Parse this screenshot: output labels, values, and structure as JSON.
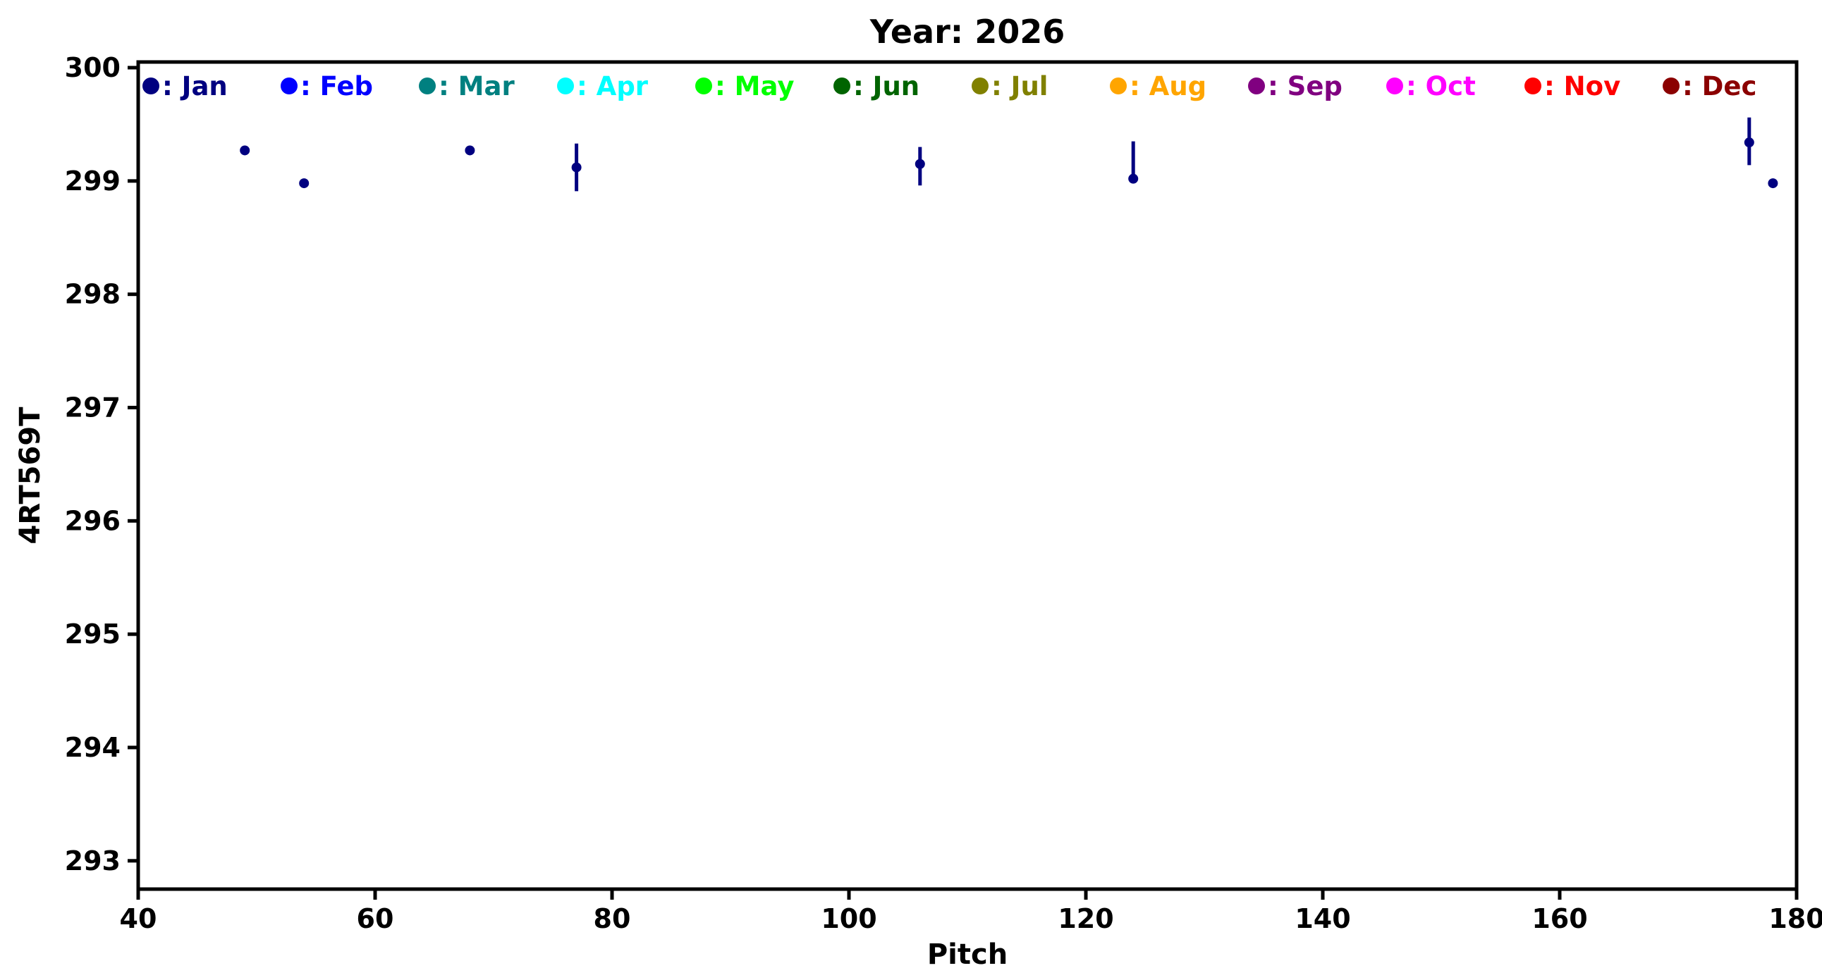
{
  "chart_data": {
    "type": "scatter",
    "title": "Year: 2026",
    "xlabel": "Pitch",
    "ylabel": "4RT569T",
    "xlim": [
      40,
      180
    ],
    "ylim": [
      292.75,
      300.05
    ],
    "xticks": [
      40,
      60,
      80,
      100,
      120,
      140,
      160,
      180
    ],
    "yticks": [
      293,
      294,
      295,
      296,
      297,
      298,
      299,
      300
    ],
    "grid": false,
    "legend_position": "top-inside-row",
    "legend": [
      {
        "label": "Jan",
        "color": "#000080"
      },
      {
        "label": "Feb",
        "color": "#0000ff"
      },
      {
        "label": "Mar",
        "color": "#008080"
      },
      {
        "label": "Apr",
        "color": "#00ffff"
      },
      {
        "label": "May",
        "color": "#00ff00"
      },
      {
        "label": "Jun",
        "color": "#006400"
      },
      {
        "label": "Jul",
        "color": "#808000"
      },
      {
        "label": "Aug",
        "color": "#ffa500"
      },
      {
        "label": "Sep",
        "color": "#800080"
      },
      {
        "label": "Oct",
        "color": "#ff00ff"
      },
      {
        "label": "Nov",
        "color": "#ff0000"
      },
      {
        "label": "Dec",
        "color": "#8b0000"
      }
    ],
    "series": [
      {
        "name": "Jan",
        "color": "#000080",
        "marker": "circle",
        "points": [
          {
            "x": 49,
            "y": 299.27,
            "yerr_plus": 0.0,
            "yerr_minus": 0.0
          },
          {
            "x": 54,
            "y": 298.98,
            "yerr_plus": 0.0,
            "yerr_minus": 0.0
          },
          {
            "x": 68,
            "y": 299.27,
            "yerr_plus": 0.0,
            "yerr_minus": 0.0
          },
          {
            "x": 77,
            "y": 299.12,
            "yerr_plus": 0.21,
            "yerr_minus": 0.21
          },
          {
            "x": 106,
            "y": 299.15,
            "yerr_plus": 0.15,
            "yerr_minus": 0.19
          },
          {
            "x": 124,
            "y": 299.02,
            "yerr_plus": 0.33,
            "yerr_minus": 0.02
          },
          {
            "x": 176,
            "y": 299.34,
            "yerr_plus": 0.22,
            "yerr_minus": 0.2
          },
          {
            "x": 178,
            "y": 298.98,
            "yerr_plus": 0.0,
            "yerr_minus": 0.0
          }
        ]
      }
    ],
    "style": {
      "background": "#ffffff",
      "spine_color": "#000000",
      "spine_width": 5,
      "tick_length": 15,
      "tick_width": 5,
      "tick_font_size": 38,
      "legend_font_size": 37,
      "marker_radius": 7,
      "legend_dot_radius": 12,
      "errorbar_width": 5
    }
  }
}
